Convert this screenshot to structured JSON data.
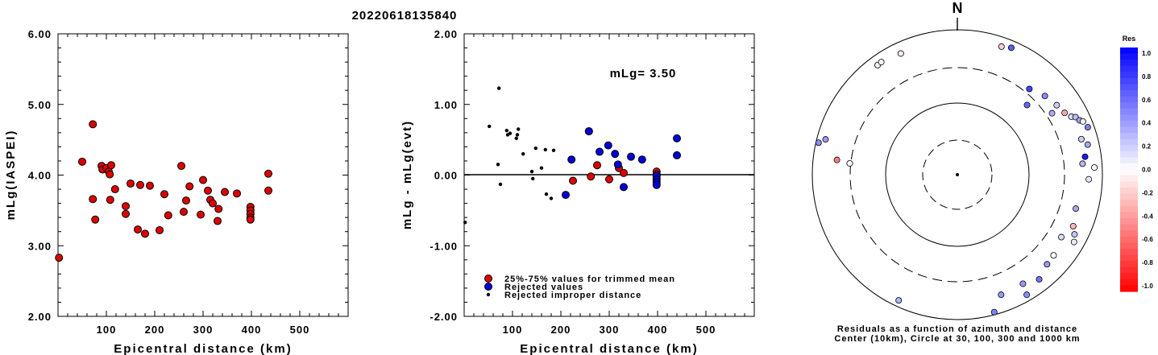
{
  "title": "20220618135840",
  "chart_data": [
    {
      "type": "scatter",
      "xlabel": "Epicentral distance (km)",
      "ylabel": "mLg(IASPEI)",
      "xlim": [
        0,
        600
      ],
      "ylim": [
        2.0,
        6.0
      ],
      "xticks": [
        "100",
        "200",
        "300",
        "400",
        "500"
      ],
      "yticks": [
        "2.00",
        "3.00",
        "4.00",
        "5.00",
        "6.00"
      ],
      "series": [
        {
          "color": "#dd0000",
          "points": [
            [
              2,
              2.83
            ],
            [
              50,
              4.19
            ],
            [
              72,
              4.72
            ],
            [
              72,
              3.66
            ],
            [
              77,
              3.37
            ],
            [
              90,
              4.13
            ],
            [
              92,
              4.08
            ],
            [
              100,
              4.1
            ],
            [
              105,
              4.05
            ],
            [
              107,
              4.01
            ],
            [
              108,
              3.65
            ],
            [
              110,
              4.14
            ],
            [
              118,
              3.8
            ],
            [
              140,
              3.56
            ],
            [
              140,
              3.45
            ],
            [
              150,
              3.88
            ],
            [
              165,
              3.23
            ],
            [
              170,
              3.86
            ],
            [
              180,
              3.17
            ],
            [
              190,
              3.85
            ],
            [
              210,
              3.22
            ],
            [
              220,
              3.73
            ],
            [
              228,
              3.43
            ],
            [
              255,
              4.13
            ],
            [
              260,
              3.48
            ],
            [
              265,
              3.64
            ],
            [
              272,
              3.84
            ],
            [
              295,
              3.44
            ],
            [
              300,
              3.93
            ],
            [
              310,
              3.78
            ],
            [
              315,
              3.65
            ],
            [
              320,
              3.6
            ],
            [
              330,
              3.35
            ],
            [
              332,
              3.52
            ],
            [
              345,
              3.76
            ],
            [
              370,
              3.74
            ],
            [
              398,
              3.55
            ],
            [
              398,
              3.5
            ],
            [
              398,
              3.45
            ],
            [
              398,
              3.4
            ],
            [
              398,
              3.37
            ],
            [
              435,
              4.02
            ],
            [
              435,
              3.78
            ]
          ]
        }
      ]
    },
    {
      "type": "scatter",
      "xlabel": "Epicentral distance (km)",
      "ylabel": "mLg - mLg(evt)",
      "xlim": [
        0,
        600
      ],
      "ylim": [
        -2.0,
        2.0
      ],
      "xticks": [
        "100",
        "200",
        "300",
        "400",
        "500"
      ],
      "yticks": [
        "-2.00",
        "-1.00",
        "0.00",
        "1.00",
        "2.00"
      ],
      "annotation": "mLg= 3.50",
      "hline": 0,
      "series": [
        {
          "name": "25%-75% values for trimmed mean",
          "color": "#dd0000",
          "size": "large",
          "points": [
            [
              225,
              -0.08
            ],
            [
              258,
              0.62
            ],
            [
              262,
              -0.02
            ],
            [
              275,
              0.14
            ],
            [
              300,
              -0.06
            ],
            [
              320,
              0.1
            ],
            [
              330,
              0.03
            ],
            [
              398,
              0.05
            ],
            [
              398,
              0.01
            ],
            [
              398,
              -0.04
            ]
          ]
        },
        {
          "name": "Rejected values",
          "color": "#0000dd",
          "size": "large",
          "points": [
            [
              210,
              -0.28
            ],
            [
              222,
              0.22
            ],
            [
              258,
              0.62
            ],
            [
              280,
              0.33
            ],
            [
              298,
              0.42
            ],
            [
              312,
              0.3
            ],
            [
              318,
              0.15
            ],
            [
              330,
              -0.17
            ],
            [
              345,
              0.26
            ],
            [
              368,
              0.22
            ],
            [
              398,
              -0.01
            ],
            [
              398,
              -0.06
            ],
            [
              398,
              -0.1
            ],
            [
              398,
              -0.14
            ],
            [
              440,
              0.52
            ],
            [
              440,
              0.28
            ]
          ]
        },
        {
          "name": "Rejected improper distance",
          "color": "#000000",
          "size": "small",
          "points": [
            [
              2,
              -0.67
            ],
            [
              52,
              0.69
            ],
            [
              70,
              0.15
            ],
            [
              72,
              1.23
            ],
            [
              75,
              -0.13
            ],
            [
              88,
              0.63
            ],
            [
              90,
              0.57
            ],
            [
              95,
              0.59
            ],
            [
              108,
              0.52
            ],
            [
              110,
              0.57
            ],
            [
              112,
              0.65
            ],
            [
              122,
              0.3
            ],
            [
              140,
              0.05
            ],
            [
              142,
              -0.05
            ],
            [
              148,
              0.38
            ],
            [
              160,
              0.1
            ],
            [
              168,
              0.36
            ],
            [
              170,
              -0.27
            ],
            [
              180,
              -0.33
            ],
            [
              185,
              0.35
            ]
          ]
        }
      ]
    },
    {
      "type": "polar-scatter",
      "north_label": "N",
      "caption_line1": "Residuals as a function of azimuth and distance",
      "caption_line2": "Center (10km), Circle at 30, 100, 300 and 1000 km",
      "colorbar_title": "Res",
      "colorbar_ticks": [
        "1.0",
        "0.8",
        "0.6",
        "0.4",
        "0.2",
        "0.0",
        "-0.2",
        "-0.4",
        "-0.6",
        "-0.8",
        "-1.0"
      ],
      "stations": [
        {
          "az": 324,
          "dist": 740,
          "res": 0.05
        },
        {
          "az": 326,
          "dist": 750,
          "res": 0.03
        },
        {
          "az": 335,
          "dist": 700,
          "res": -0.08
        },
        {
          "az": 19,
          "dist": 740,
          "res": -0.18
        },
        {
          "az": 23,
          "dist": 800,
          "res": 0.63
        },
        {
          "az": 45,
          "dist": 230,
          "res": 0.6
        },
        {
          "az": 40,
          "dist": 350,
          "res": 0.73
        },
        {
          "az": 48,
          "dist": 420,
          "res": 0.45
        },
        {
          "az": 57,
          "dist": 360,
          "res": 0.33
        },
        {
          "az": 55,
          "dist": 470,
          "res": 0.2
        },
        {
          "az": 60,
          "dist": 510,
          "res": -0.35
        },
        {
          "az": 63,
          "dist": 580,
          "res": 0.15
        },
        {
          "az": 64,
          "dist": 650,
          "res": 0.26
        },
        {
          "az": 66,
          "dist": 700,
          "res": 0.33
        },
        {
          "az": 67,
          "dist": 760,
          "res": 0.05
        },
        {
          "az": 70,
          "dist": 820,
          "res": 0.5
        },
        {
          "az": 74,
          "dist": 600,
          "res": 0.2
        },
        {
          "az": 77,
          "dist": 700,
          "res": 0.35
        },
        {
          "az": 82,
          "dist": 600,
          "res": 0.9
        },
        {
          "az": 85,
          "dist": 540,
          "res": 0.28
        },
        {
          "az": 87,
          "dist": 780,
          "res": 0.02
        },
        {
          "az": 92,
          "dist": 650,
          "res": 0.1
        },
        {
          "az": 106,
          "dist": 500,
          "res": 0.35
        },
        {
          "az": 114,
          "dist": 560,
          "res": -0.28
        },
        {
          "az": 117,
          "dist": 650,
          "res": 0.24
        },
        {
          "az": 120,
          "dist": 720,
          "res": 0.08
        },
        {
          "az": 121,
          "dist": 470,
          "res": 0.14
        },
        {
          "az": 130,
          "dist": 540,
          "res": 0.03
        },
        {
          "az": 135,
          "dist": 560,
          "res": 0.4
        },
        {
          "az": 142,
          "dist": 680,
          "res": 0.55
        },
        {
          "az": 149,
          "dist": 570,
          "res": 0.4
        },
        {
          "az": 150,
          "dist": 820,
          "res": 0.45
        },
        {
          "az": 160,
          "dist": 580,
          "res": 0.4
        },
        {
          "az": 165,
          "dist": 920,
          "res": 0.5
        },
        {
          "az": 205,
          "dist": 820,
          "res": 0.3
        },
        {
          "az": 276,
          "dist": 310,
          "res": 0.02
        },
        {
          "az": 277,
          "dist": 470,
          "res": -0.5
        },
        {
          "az": 285,
          "dist": 760,
          "res": 0.4
        },
        {
          "az": 283,
          "dist": 920,
          "res": 0.45
        }
      ]
    }
  ]
}
